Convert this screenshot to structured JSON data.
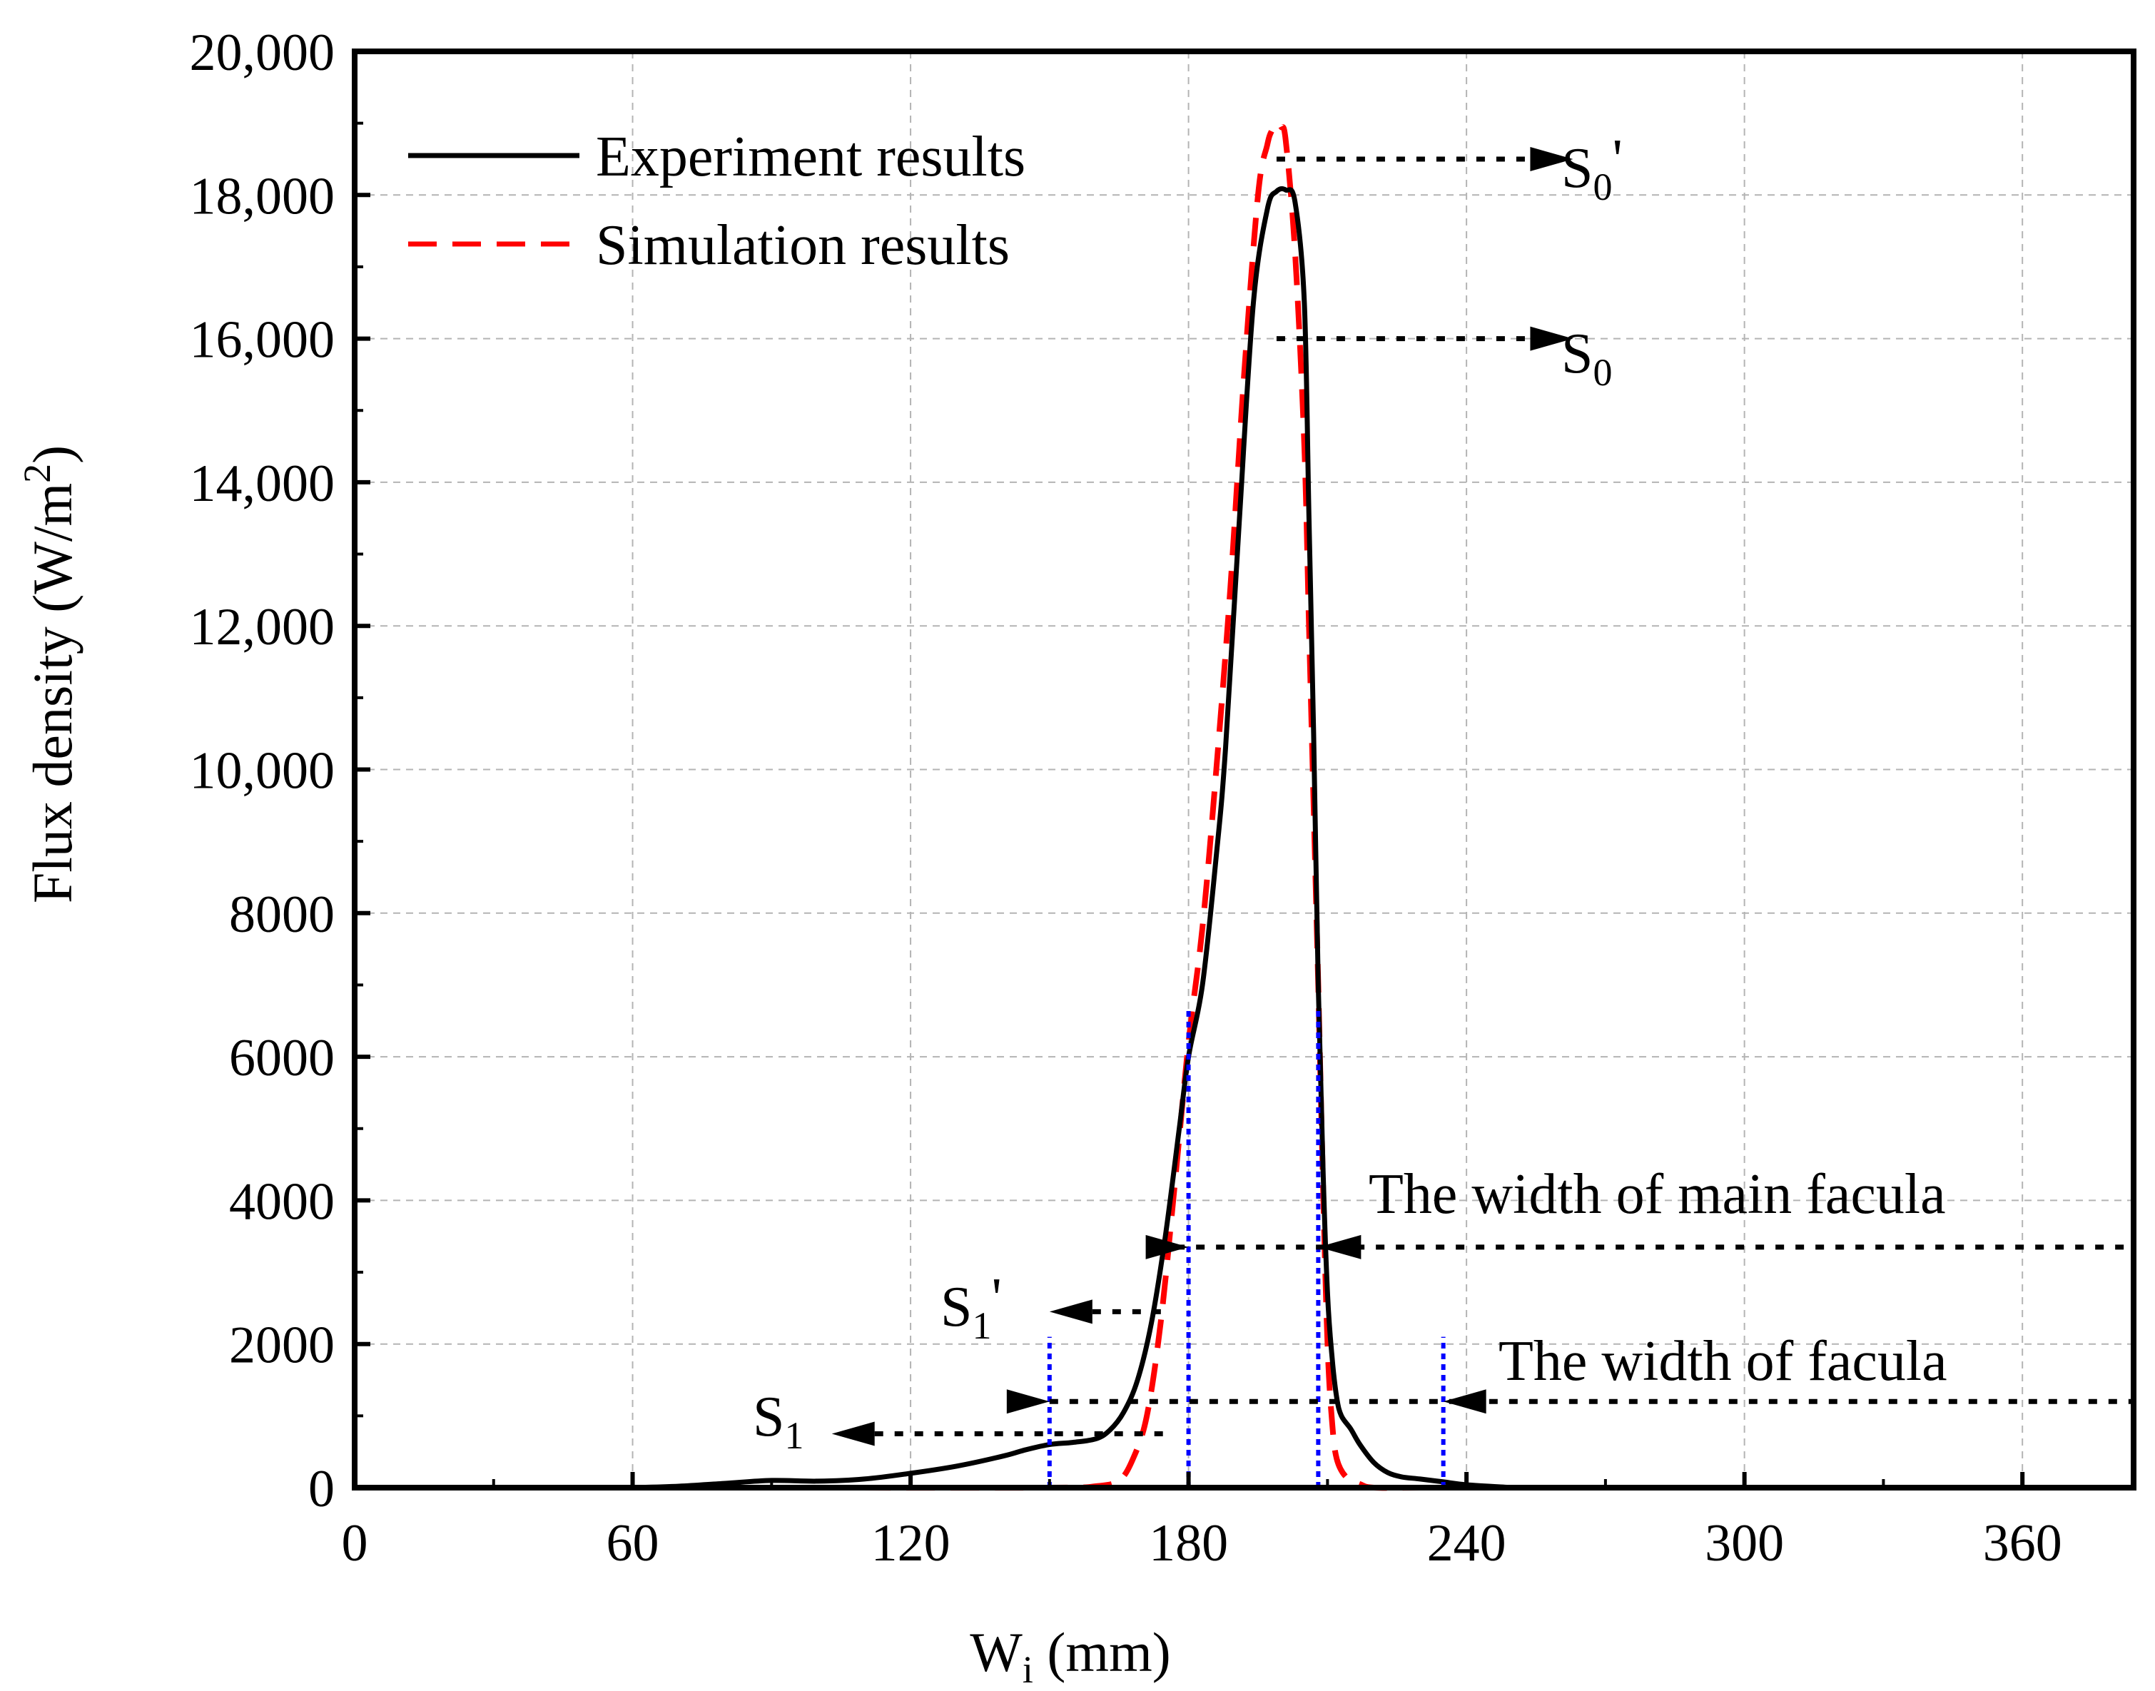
{
  "chart_data": {
    "type": "line",
    "title": "",
    "xlabel": "W",
    "xlabel_subscript": "i",
    "xlabel_units": " (mm)",
    "ylabel": "Flux density (W/m",
    "ylabel_superscript": "2",
    "ylabel_close": ")",
    "xlim": [
      0,
      384
    ],
    "ylim": [
      0,
      20000
    ],
    "x_ticks": [
      0,
      60,
      120,
      180,
      240,
      300,
      360
    ],
    "x_tick_labels": [
      "0",
      "60",
      "120",
      "180",
      "240",
      "300",
      "360"
    ],
    "y_ticks": [
      0,
      2000,
      4000,
      6000,
      8000,
      10000,
      12000,
      14000,
      16000,
      18000,
      20000
    ],
    "y_tick_labels": [
      "0",
      "2000",
      "4000",
      "6000",
      "8000",
      "10,000",
      "12,000",
      "14,000",
      "16,000",
      "18,000",
      "20,000"
    ],
    "grid": true,
    "legend_position": "top-left",
    "series": [
      {
        "name": "Experiment results",
        "color": "#000000",
        "style": "solid",
        "x": [
          60,
          70,
          80,
          90,
          100,
          110,
          120,
          130,
          140,
          145,
          150,
          155,
          160,
          163,
          166,
          169,
          172,
          175,
          178,
          180,
          183,
          186,
          188,
          191,
          194,
          197,
          199,
          201,
          203,
          205,
          206,
          207,
          208,
          209,
          210,
          211,
          212,
          213,
          215,
          217,
          220,
          223,
          226,
          230,
          235,
          240,
          250
        ],
        "values": [
          0,
          20,
          60,
          100,
          90,
          120,
          200,
          300,
          440,
          530,
          600,
          630,
          680,
          800,
          1050,
          1500,
          2300,
          3500,
          5000,
          6000,
          7000,
          8800,
          10300,
          13500,
          16500,
          17800,
          18050,
          18070,
          17900,
          16500,
          13500,
          10500,
          7000,
          4500,
          2700,
          1800,
          1250,
          1000,
          820,
          600,
          350,
          210,
          150,
          120,
          80,
          40,
          0
        ]
      },
      {
        "name": "Simulation results",
        "color": "#ff0000",
        "style": "dashed",
        "x": [
          100,
          150,
          160,
          165,
          168,
          171,
          174,
          177,
          180,
          183,
          186,
          189,
          192,
          195,
          197,
          198,
          199,
          200,
          201,
          203,
          205,
          206,
          207,
          208,
          209,
          210,
          211,
          212,
          214,
          217,
          220,
          230,
          240
        ],
        "values": [
          0,
          0,
          20,
          100,
          400,
          1000,
          2300,
          4200,
          6200,
          7800,
          10000,
          12500,
          15500,
          18000,
          18700,
          18900,
          19000,
          18950,
          18750,
          17200,
          14500,
          12000,
          9500,
          7000,
          4300,
          2000,
          900,
          400,
          150,
          50,
          0,
          0,
          0
        ]
      }
    ],
    "annotations": {
      "s0_prime": {
        "label": "S",
        "sub": "0",
        "suffix": "'",
        "y": 18500,
        "x_start": 199,
        "x_arrow": 263
      },
      "s0": {
        "label": "S",
        "sub": "0",
        "suffix": "",
        "y": 16000,
        "x_start": 199,
        "x_arrow": 263
      },
      "main_facula": {
        "label": "The width of main facula",
        "y": 3350,
        "x_left": 173,
        "x_mid": 208,
        "x_right": 384,
        "blue_left_x": 180,
        "blue_right_x": 208,
        "blue_top": 6700
      },
      "s1_prime": {
        "label": "S",
        "sub": "1",
        "suffix": "'",
        "y": 2450,
        "x_start": 175,
        "x_arrow": 150
      },
      "facula": {
        "label": "The width of facula",
        "y": 1200,
        "x_left": 150,
        "x_mid": 235,
        "x_right": 384,
        "blue_left_x": 150,
        "blue_right_x": 235,
        "blue_top": 2100
      },
      "s1": {
        "label": "S",
        "sub": "1",
        "suffix": "",
        "y": 750,
        "x_start": 176,
        "x_arrow": 103
      }
    }
  }
}
